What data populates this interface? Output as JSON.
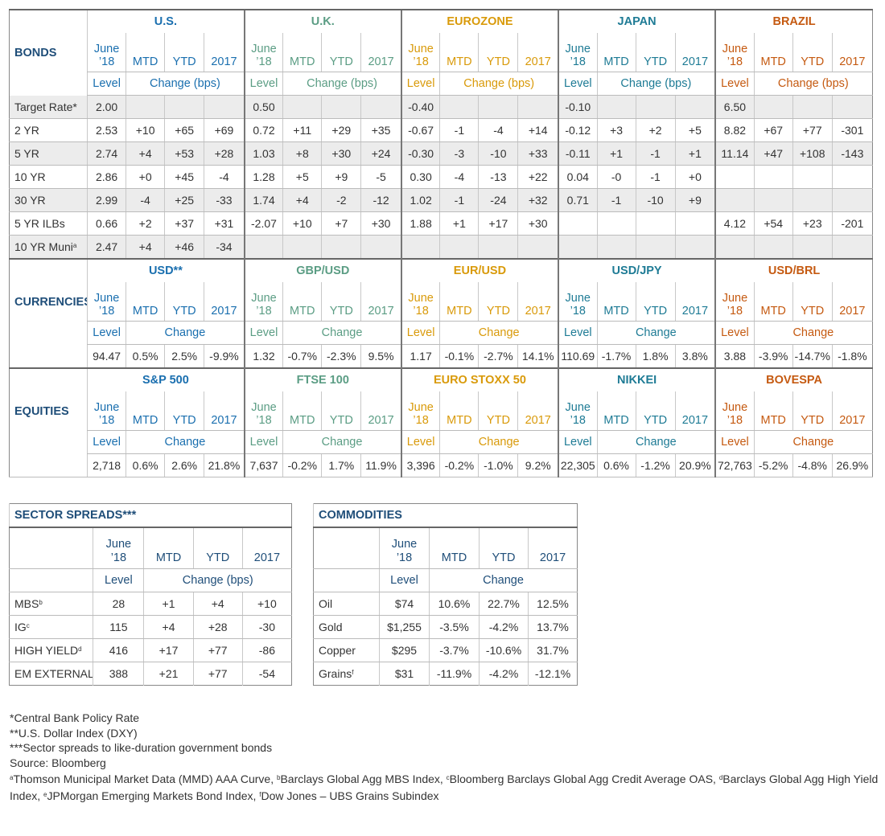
{
  "colors": {
    "us": "#1a6faf",
    "uk": "#5b9d84",
    "euro": "#d99a0a",
    "japan": "#1e7b95",
    "brazil": "#c55a11",
    "section": "#1f4e79",
    "shade": "#ececec"
  },
  "hdr": {
    "june": "June",
    "yr18": "’18",
    "mtd": "MTD",
    "ytd": "YTD",
    "y2017": "2017",
    "level": "Level",
    "change": "Change",
    "change_bps": "Change (bps)"
  },
  "bonds": {
    "label": "BONDS",
    "groups": [
      "U.S.",
      "U.K.",
      "EUROZONE",
      "JAPAN",
      "BRAZIL"
    ],
    "rows": [
      {
        "label": "Target Rate*",
        "cells": [
          "2.00",
          "",
          "",
          "",
          "0.50",
          "",
          "",
          "",
          "-0.40",
          "",
          "",
          "",
          "-0.10",
          "",
          "",
          "",
          "6.50",
          "",
          "",
          ""
        ]
      },
      {
        "label": "2 YR",
        "cells": [
          "2.53",
          "+10",
          "+65",
          "+69",
          "0.72",
          "+11",
          "+29",
          "+35",
          "-0.67",
          "-1",
          "-4",
          "+14",
          "-0.12",
          "+3",
          "+2",
          "+5",
          "8.82",
          "+67",
          "+77",
          "-301"
        ]
      },
      {
        "label": "5 YR",
        "cells": [
          "2.74",
          "+4",
          "+53",
          "+28",
          "1.03",
          "+8",
          "+30",
          "+24",
          "-0.30",
          "-3",
          "-10",
          "+33",
          "-0.11",
          "+1",
          "-1",
          "+1",
          "11.14",
          "+47",
          "+108",
          "-143"
        ]
      },
      {
        "label": "10 YR",
        "cells": [
          "2.86",
          "+0",
          "+45",
          "-4",
          "1.28",
          "+5",
          "+9",
          "-5",
          "0.30",
          "-4",
          "-13",
          "+22",
          "0.04",
          "-0",
          "-1",
          "+0",
          "",
          "",
          "",
          ""
        ]
      },
      {
        "label": "30 YR",
        "cells": [
          "2.99",
          "-4",
          "+25",
          "-33",
          "1.74",
          "+4",
          "-2",
          "-12",
          "1.02",
          "-1",
          "-24",
          "+32",
          "0.71",
          "-1",
          "-10",
          "+9",
          "",
          "",
          "",
          ""
        ]
      },
      {
        "label": "5 YR ILBs",
        "cells": [
          "0.66",
          "+2",
          "+37",
          "+31",
          "-2.07",
          "+10",
          "+7",
          "+30",
          "1.88",
          "+1",
          "+17",
          "+30",
          "",
          "",
          "",
          "",
          "4.12",
          "+54",
          "+23",
          "-201"
        ]
      },
      {
        "label": "10 YR Muni",
        "sup": "a",
        "cells": [
          "2.47",
          "+4",
          "+46",
          "-34",
          "",
          "",
          "",
          "",
          "",
          "",
          "",
          "",
          "",
          "",
          "",
          "",
          "",
          "",
          "",
          ""
        ]
      }
    ]
  },
  "currencies": {
    "label": "CURRENCIES",
    "groups": [
      "USD**",
      "GBP/USD",
      "EUR/USD",
      "USD/JPY",
      "USD/BRL"
    ],
    "rows": [
      {
        "cells": [
          "94.47",
          "0.5%",
          "2.5%",
          "-9.9%",
          "1.32",
          "-0.7%",
          "-2.3%",
          "9.5%",
          "1.17",
          "-0.1%",
          "-2.7%",
          "14.1%",
          "110.69",
          "-1.7%",
          "1.8%",
          "3.8%",
          "3.88",
          "-3.9%",
          "-14.7%",
          "-1.8%"
        ]
      }
    ]
  },
  "equities": {
    "label": "EQUITIES",
    "groups": [
      "S&P 500",
      "FTSE 100",
      "EURO STOXX 50",
      "NIKKEI",
      "BOVESPA"
    ],
    "rows": [
      {
        "cells": [
          "2,718",
          "0.6%",
          "2.6%",
          "21.8%",
          "7,637",
          "-0.2%",
          "1.7%",
          "11.9%",
          "3,396",
          "-0.2%",
          "-1.0%",
          "9.2%",
          "22,305",
          "0.6%",
          "-1.2%",
          "20.9%",
          "72,763",
          "-5.2%",
          "-4.8%",
          "26.9%"
        ]
      }
    ]
  },
  "sector": {
    "title": "SECTOR SPREADS***",
    "rows": [
      {
        "label": "MBS",
        "sup": "b",
        "cells": [
          "28",
          "+1",
          "+4",
          "+10"
        ]
      },
      {
        "label": "IG",
        "sup": "c",
        "cells": [
          "115",
          "+4",
          "+28",
          "-30"
        ]
      },
      {
        "label": "HIGH YIELD",
        "sup": "d",
        "cells": [
          "416",
          "+17",
          "+77",
          "-86"
        ]
      },
      {
        "label": "EM EXTERNAL",
        "sup": "e",
        "cells": [
          "388",
          "+21",
          "+77",
          "-54"
        ]
      }
    ]
  },
  "commodities": {
    "title": "COMMODITIES",
    "rows": [
      {
        "label": "Oil",
        "sup": "",
        "cells": [
          "$74",
          "10.6%",
          "22.7%",
          "12.5%"
        ]
      },
      {
        "label": "Gold",
        "sup": "",
        "cells": [
          "$1,255",
          "-3.5%",
          "-4.2%",
          "13.7%"
        ]
      },
      {
        "label": "Copper",
        "sup": "",
        "cells": [
          "$295",
          "-3.7%",
          "-10.6%",
          "31.7%"
        ]
      },
      {
        "label": "Grains",
        "sup": "f",
        "cells": [
          "$31",
          "-11.9%",
          "-4.2%",
          "-12.1%"
        ]
      }
    ]
  },
  "footnotes": {
    "star1": "*Central Bank Policy Rate",
    "star2": "**U.S. Dollar Index (DXY)",
    "star3": "***Sector spreads to like-duration government bonds",
    "source": "Source: Bloomberg",
    "refs": [
      {
        "sup": "a",
        "text": "Thomson Municipal Market Data (MMD) AAA Curve, "
      },
      {
        "sup": "b",
        "text": "Barclays Global Agg MBS Index, "
      },
      {
        "sup": "c",
        "text": "Bloomberg Barclays Global Agg Credit Average OAS, "
      },
      {
        "sup": "d",
        "text": "Barclays Global Agg High Yield Index, "
      },
      {
        "sup": "e",
        "text": "JPMorgan Emerging Markets Bond Index, "
      },
      {
        "sup": "f",
        "text": "Dow Jones – UBS Grains Subindex"
      }
    ]
  }
}
